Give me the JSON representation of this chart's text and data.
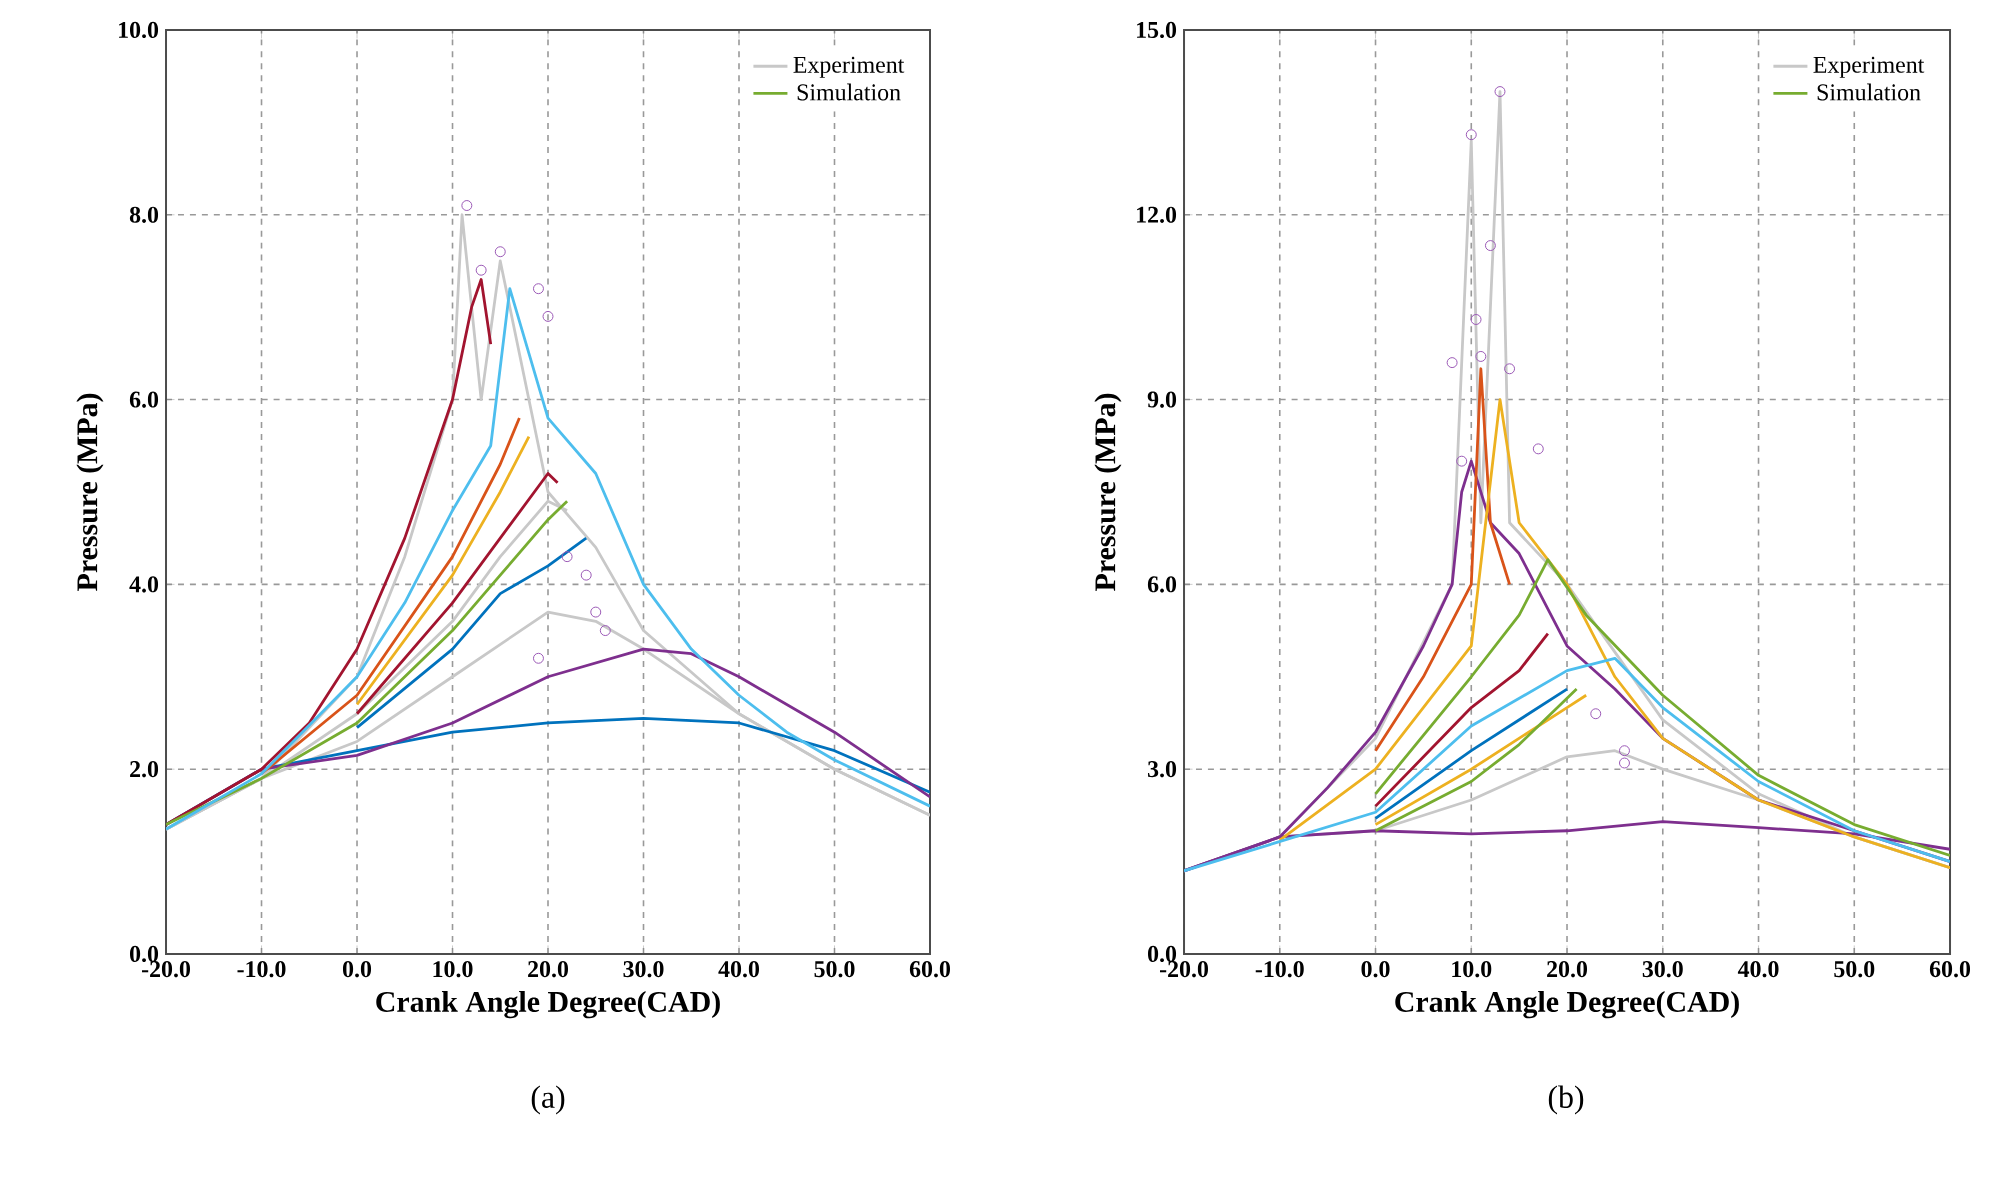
{
  "chart_data": [
    {
      "type": "line",
      "xlabel": "Crank Angle Degree(CAD)",
      "ylabel": "Pressure (MPa)",
      "annotations": [
        "(a)"
      ],
      "xlim": [
        -20,
        60
      ],
      "xticks": [
        {
          "value": -20,
          "label": "-20.0"
        },
        {
          "value": -10,
          "label": "-10.0"
        },
        {
          "value": 0,
          "label": "0.0"
        },
        {
          "value": 10,
          "label": "10.0"
        },
        {
          "value": 20,
          "label": "20.0"
        },
        {
          "value": 30,
          "label": "30.0"
        },
        {
          "value": 40,
          "label": "40.0"
        },
        {
          "value": 50,
          "label": "50.0"
        },
        {
          "value": 60,
          "label": "60.0"
        }
      ],
      "ylim": [
        0,
        10
      ],
      "yticks": [
        {
          "value": 0,
          "label": "0.0"
        },
        {
          "value": 2,
          "label": "2.0"
        },
        {
          "value": 4,
          "label": "4.0"
        },
        {
          "value": 6,
          "label": "6.0"
        },
        {
          "value": 8,
          "label": "8.0"
        },
        {
          "value": 10,
          "label": "10.0"
        }
      ],
      "grid": true,
      "legend": "top right",
      "line_style": "solid",
      "series": [
        {
          "name": "Experiment",
          "color": "#c8c8c8",
          "x": [
            -20,
            -10,
            0,
            5,
            10,
            11,
            13,
            15,
            20,
            25,
            30,
            40,
            50,
            60
          ],
          "values": [
            1.35,
            1.9,
            3.0,
            4.3,
            6.0,
            8.0,
            6.0,
            7.5,
            5.0,
            4.4,
            3.5,
            2.6,
            2.0,
            1.5
          ]
        },
        {
          "color": "#c8c8c8",
          "x": [
            -20,
            -10,
            0,
            10,
            20,
            25,
            30,
            40,
            50,
            60
          ],
          "values": [
            1.35,
            1.9,
            2.3,
            3.0,
            3.7,
            3.6,
            3.3,
            2.6,
            2.0,
            1.5
          ]
        },
        {
          "color": "#c8c8c8",
          "x": [
            -20,
            -10,
            0,
            10,
            15,
            20,
            22
          ],
          "values": [
            1.35,
            1.9,
            2.6,
            3.6,
            4.3,
            4.9,
            4.8
          ]
        },
        {
          "color": "#0072bd",
          "x": [
            -20,
            -10,
            0,
            10,
            20,
            30,
            40,
            50,
            60
          ],
          "values": [
            1.4,
            2.0,
            2.2,
            2.4,
            2.5,
            2.55,
            2.5,
            2.2,
            1.75
          ]
        },
        {
          "color": "#7e2f8e",
          "x": [
            -20,
            -10,
            0,
            10,
            20,
            30,
            35,
            40,
            50,
            60
          ],
          "values": [
            1.4,
            2.0,
            2.15,
            2.5,
            3.0,
            3.3,
            3.25,
            3.0,
            2.4,
            1.7
          ]
        },
        {
          "color": "#a2142f",
          "x": [
            -20,
            -10,
            -5,
            0,
            5,
            10,
            11,
            12,
            13,
            14
          ],
          "values": [
            1.4,
            2.0,
            2.5,
            3.3,
            4.5,
            6.0,
            6.5,
            7.0,
            7.3,
            6.6
          ]
        },
        {
          "color": "#d95319",
          "x": [
            -10,
            0,
            10,
            15,
            17
          ],
          "values": [
            1.95,
            2.8,
            4.3,
            5.3,
            5.8
          ]
        },
        {
          "color": "#edb120",
          "x": [
            0,
            10,
            15,
            18
          ],
          "values": [
            2.7,
            4.1,
            5.0,
            5.6
          ]
        },
        {
          "name": "Simulation",
          "color": "#77ac30",
          "x": [
            -20,
            -10,
            0,
            10,
            15,
            20,
            22
          ],
          "values": [
            1.4,
            1.9,
            2.5,
            3.5,
            4.1,
            4.7,
            4.9
          ]
        },
        {
          "color": "#0072bd",
          "x": [
            0,
            10,
            15,
            20,
            24
          ],
          "values": [
            2.45,
            3.3,
            3.9,
            4.2,
            4.5
          ]
        },
        {
          "color": "#a2142f",
          "x": [
            0,
            10,
            20,
            21
          ],
          "values": [
            2.6,
            3.8,
            5.2,
            5.1
          ]
        },
        {
          "color": "#4dbeee",
          "x": [
            -20,
            -10,
            0,
            5,
            10,
            14,
            16,
            18,
            20,
            25,
            30,
            35,
            40,
            45,
            50,
            60
          ],
          "values": [
            1.35,
            1.95,
            3.0,
            3.8,
            4.8,
            5.5,
            7.2,
            6.5,
            5.8,
            5.2,
            4.0,
            3.3,
            2.8,
            2.4,
            2.1,
            1.6
          ]
        },
        {
          "type": "scatter",
          "marker": "circle",
          "color": "#9b59b6",
          "x": [
            11.5,
            13,
            15,
            19,
            20,
            22,
            24,
            25,
            26,
            19
          ],
          "values": [
            8.1,
            7.4,
            7.6,
            7.2,
            6.9,
            4.3,
            4.1,
            3.7,
            3.5,
            3.2
          ]
        }
      ]
    },
    {
      "type": "line",
      "xlabel": "Crank Angle Degree(CAD)",
      "ylabel": "Pressure (MPa)",
      "annotations": [
        "(b)"
      ],
      "xlim": [
        -20,
        60
      ],
      "xticks": [
        {
          "value": -20,
          "label": "-20.0"
        },
        {
          "value": -10,
          "label": "-10.0"
        },
        {
          "value": 0,
          "label": "0.0"
        },
        {
          "value": 10,
          "label": "10.0"
        },
        {
          "value": 20,
          "label": "20.0"
        },
        {
          "value": 30,
          "label": "30.0"
        },
        {
          "value": 40,
          "label": "40.0"
        },
        {
          "value": 50,
          "label": "50.0"
        },
        {
          "value": 60,
          "label": "60.0"
        }
      ],
      "ylim": [
        0,
        15
      ],
      "yticks": [
        {
          "value": 0,
          "label": "0.0"
        },
        {
          "value": 3,
          "label": "3.0"
        },
        {
          "value": 6,
          "label": "6.0"
        },
        {
          "value": 9,
          "label": "9.0"
        },
        {
          "value": 12,
          "label": "12.0"
        },
        {
          "value": 15,
          "label": "15.0"
        }
      ],
      "grid": true,
      "legend": "top right",
      "line_style": "solid",
      "series": [
        {
          "name": "Experiment",
          "color": "#c8c8c8",
          "x": [
            -20,
            -10,
            0,
            8,
            10,
            11,
            13,
            14,
            20,
            30,
            40,
            50,
            60
          ],
          "values": [
            1.35,
            1.9,
            3.5,
            6.0,
            13.2,
            7.0,
            14.0,
            7.0,
            6.0,
            3.8,
            2.6,
            1.9,
            1.4
          ]
        },
        {
          "color": "#c8c8c8",
          "x": [
            -20,
            -10,
            0,
            10,
            20,
            25,
            30,
            40,
            50,
            60
          ],
          "values": [
            1.35,
            1.9,
            2.0,
            2.5,
            3.2,
            3.3,
            3.0,
            2.5,
            1.9,
            1.4
          ]
        },
        {
          "color": "#7e2f8e",
          "x": [
            -20,
            -10,
            0,
            10,
            20,
            30,
            40,
            50,
            60
          ],
          "values": [
            1.35,
            1.9,
            2.0,
            1.95,
            2.0,
            2.15,
            2.05,
            1.95,
            1.7
          ]
        },
        {
          "color": "#7e2f8e",
          "x": [
            -20,
            -10,
            -5,
            0,
            5,
            8,
            9,
            10,
            12,
            15,
            20,
            25,
            30,
            40,
            50,
            60
          ],
          "values": [
            1.35,
            1.9,
            2.7,
            3.6,
            5.0,
            6.0,
            7.5,
            8.0,
            7.0,
            6.5,
            5.0,
            4.3,
            3.5,
            2.5,
            2.0,
            1.5
          ]
        },
        {
          "color": "#d95319",
          "x": [
            0,
            5,
            10,
            11,
            12,
            14
          ],
          "values": [
            3.3,
            4.5,
            6.0,
            9.5,
            7.0,
            6.0
          ]
        },
        {
          "color": "#edb120",
          "x": [
            -10,
            0,
            10,
            13,
            15,
            20,
            25,
            30,
            40,
            50,
            60
          ],
          "values": [
            1.85,
            3.0,
            5.0,
            9.0,
            7.0,
            6.0,
            4.5,
            3.5,
            2.5,
            1.9,
            1.4
          ]
        },
        {
          "name": "Simulation",
          "color": "#77ac30",
          "x": [
            0,
            10,
            15,
            18,
            22,
            30,
            40,
            50,
            60
          ],
          "values": [
            2.6,
            4.5,
            5.5,
            6.4,
            5.5,
            4.2,
            2.9,
            2.1,
            1.6
          ]
        },
        {
          "color": "#a2142f",
          "x": [
            0,
            10,
            15,
            18
          ],
          "values": [
            2.4,
            4.0,
            4.6,
            5.2
          ]
        },
        {
          "color": "#4dbeee",
          "x": [
            -20,
            0,
            10,
            20,
            25,
            30,
            40,
            50,
            60
          ],
          "values": [
            1.35,
            2.3,
            3.7,
            4.6,
            4.8,
            4.0,
            2.8,
            2.0,
            1.5
          ]
        },
        {
          "color": "#0072bd",
          "x": [
            0,
            10,
            20
          ],
          "values": [
            2.2,
            3.3,
            4.3
          ]
        },
        {
          "color": "#edb120",
          "x": [
            0,
            10,
            20,
            22
          ],
          "values": [
            2.1,
            3.0,
            4.0,
            4.2
          ]
        },
        {
          "color": "#77ac30",
          "x": [
            0,
            10,
            15,
            21
          ],
          "values": [
            2.0,
            2.8,
            3.4,
            4.3
          ]
        },
        {
          "type": "scatter",
          "marker": "circle",
          "color": "#9b59b6",
          "x": [
            10,
            13,
            12,
            10.5,
            11,
            8,
            14,
            17,
            23,
            26,
            26,
            9
          ],
          "values": [
            13.3,
            14.0,
            11.5,
            10.3,
            9.7,
            9.6,
            9.5,
            8.2,
            3.9,
            3.3,
            3.1,
            8.0
          ]
        }
      ]
    }
  ]
}
